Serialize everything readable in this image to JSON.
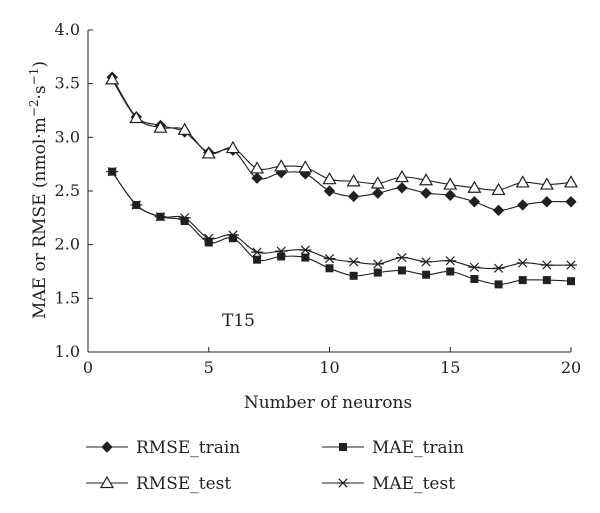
{
  "chart_data": {
    "type": "line",
    "title": "",
    "xlabel": "Number of neurons",
    "ylabel_main": "MAE or RMSE (nmol·m",
    "ylabel_exp1": "−2",
    "ylabel_mid": "·s",
    "ylabel_exp2": "−1",
    "ylabel_end": ")",
    "xlim": [
      0,
      20
    ],
    "ylim": [
      1.0,
      4.0
    ],
    "xticks": [
      0,
      5,
      10,
      15,
      20
    ],
    "yticks": [
      1.0,
      1.5,
      2.0,
      2.5,
      3.0,
      3.5,
      4.0
    ],
    "xtick_labels": [
      "0",
      "5",
      "10",
      "15",
      "20"
    ],
    "ytick_labels": [
      "1.0",
      "1.5",
      "2.0",
      "2.5",
      "3.0",
      "3.5",
      "4.0"
    ],
    "grid": false,
    "legend_position": "bottom",
    "annotation": "T15",
    "x": [
      1,
      2,
      3,
      4,
      5,
      6,
      7,
      8,
      9,
      10,
      11,
      12,
      13,
      14,
      15,
      16,
      17,
      18,
      19,
      20
    ],
    "series": [
      {
        "name": "RMSE_train",
        "marker": "diamond",
        "values": [
          3.56,
          3.19,
          3.11,
          3.05,
          2.86,
          2.88,
          2.62,
          2.67,
          2.66,
          2.5,
          2.45,
          2.48,
          2.53,
          2.48,
          2.46,
          2.4,
          2.32,
          2.37,
          2.4,
          2.4
        ]
      },
      {
        "name": "MAE_train",
        "marker": "square",
        "values": [
          2.68,
          2.37,
          2.26,
          2.22,
          2.02,
          2.06,
          1.86,
          1.89,
          1.88,
          1.78,
          1.71,
          1.74,
          1.76,
          1.72,
          1.75,
          1.68,
          1.63,
          1.67,
          1.67,
          1.66
        ]
      },
      {
        "name": "RMSE_test",
        "marker": "triangle",
        "values": [
          3.54,
          3.18,
          3.09,
          3.07,
          2.85,
          2.9,
          2.71,
          2.73,
          2.72,
          2.61,
          2.59,
          2.57,
          2.63,
          2.6,
          2.56,
          2.53,
          2.51,
          2.58,
          2.56,
          2.58
        ]
      },
      {
        "name": "MAE_test",
        "marker": "asterisk",
        "values": [
          2.68,
          2.37,
          2.26,
          2.25,
          2.06,
          2.09,
          1.93,
          1.94,
          1.95,
          1.87,
          1.84,
          1.82,
          1.88,
          1.84,
          1.85,
          1.79,
          1.78,
          1.83,
          1.81,
          1.81
        ]
      }
    ],
    "colors": {
      "line": "#231f20"
    }
  }
}
